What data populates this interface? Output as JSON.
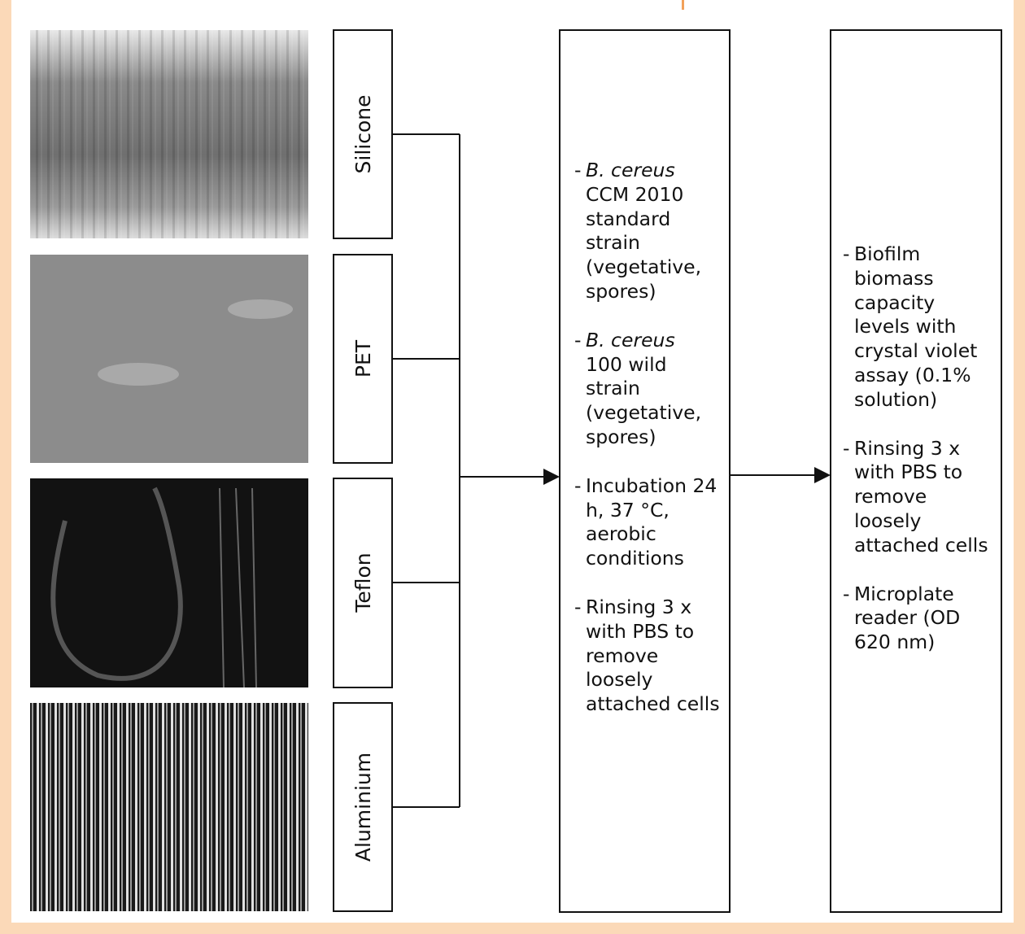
{
  "materials": [
    {
      "label": "Silicone"
    },
    {
      "label": "PET"
    },
    {
      "label": "Teflon"
    },
    {
      "label": "Aluminium"
    }
  ],
  "middle_box": {
    "items": [
      {
        "marker": "-",
        "italic": "B. cereus",
        "text": "CCM 2010 standard strain (vegetative, spores)"
      },
      {
        "marker": "-",
        "italic": "B. cereus",
        "text": "100 wild strain (vegetative, spores)"
      },
      {
        "marker": "-",
        "text": "Incubation 24 h, 37 °C, aerobic conditions"
      },
      {
        "marker": "-",
        "text": "Rinsing 3 x with PBS to remove loosely attached cells"
      }
    ]
  },
  "right_box": {
    "items": [
      {
        "marker": "-",
        "text": "Biofilm biomass capacity levels with crystal violet assay (0.1% solution)"
      },
      {
        "marker": "-",
        "text": "Rinsing 3 x with PBS to remove loosely attached cells"
      },
      {
        "marker": "-",
        "text": "Microplate reader (OD 620 nm)"
      }
    ]
  }
}
